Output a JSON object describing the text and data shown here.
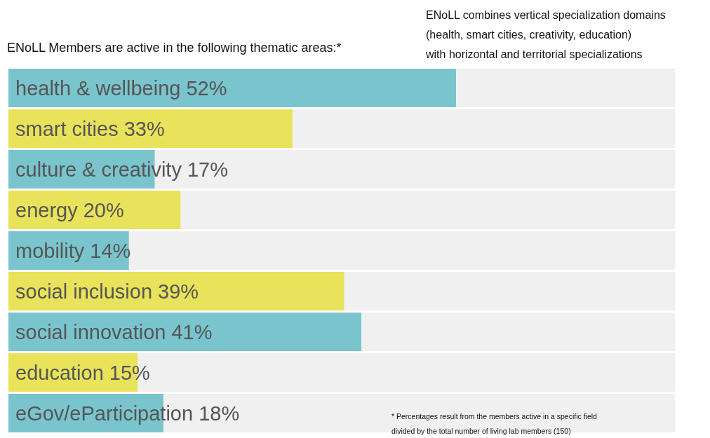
{
  "chart_data": {
    "type": "bar",
    "orientation": "horizontal",
    "title": "ENoLL Members are active in the following thematic areas:*",
    "categories": [
      "health & wellbeing",
      "smart cities",
      "culture & creativity",
      "energy",
      "mobility",
      "social inclusion",
      "social innovation",
      "education",
      "eGov/eParticipation"
    ],
    "values": [
      52,
      33,
      17,
      20,
      14,
      39,
      41,
      15,
      18
    ],
    "value_labels": [
      "52%",
      "33%",
      "17%",
      "20%",
      "14%",
      "39%",
      "41%",
      "15%",
      "18%"
    ],
    "colors": [
      "#7ac5cd",
      "#e8e35a",
      "#7ac5cd",
      "#e8e35a",
      "#7ac5cd",
      "#e8e35a",
      "#7ac5cd",
      "#e8e35a",
      "#7ac5cd"
    ],
    "annotations": [
      "ENoLL combines vertical specialization domains (health, smart cities, creativity, education) with horizontal and territorial specializations",
      "* Percentages result from the members active in a specific field divided by the total number of living lab members (150)"
    ]
  }
}
